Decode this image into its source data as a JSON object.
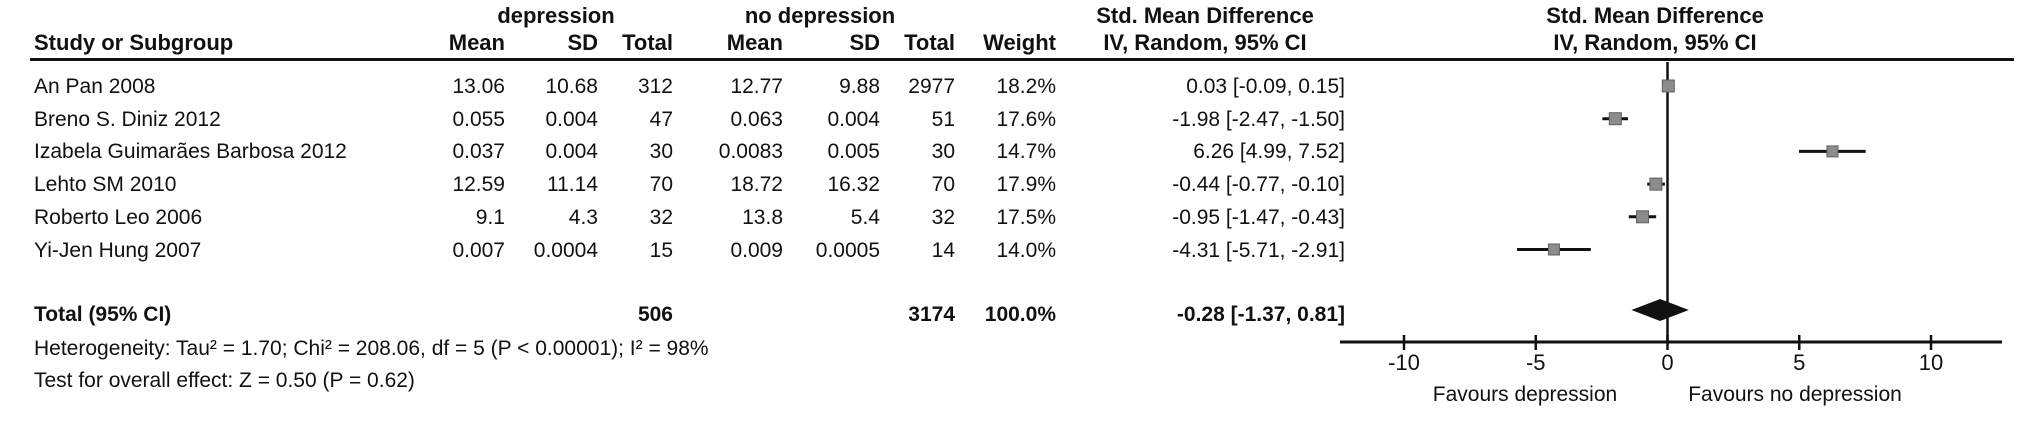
{
  "header": {
    "group1": "depression",
    "group2": "no depression",
    "effect": "Std. Mean Difference",
    "method": "IV, Random, 95% CI",
    "col_study": "Study or Subgroup",
    "col_mean": "Mean",
    "col_sd": "SD",
    "col_total": "Total",
    "col_weight": "Weight"
  },
  "total_row": {
    "label": "Total (95% CI)",
    "total1": "506",
    "total2": "3174",
    "weight": "100.0%",
    "ci": "-0.28 [-1.37, 0.81]"
  },
  "footer": {
    "heterogeneity": "Heterogeneity: Tau² = 1.70; Chi² = 208.06, df = 5 (P < 0.00001); I² = 98%",
    "overall_effect": "Test for overall effect: Z = 0.50 (P = 0.62)"
  },
  "chart_data": {
    "type": "scatter",
    "subtype": "forest-plot",
    "title": "Std. Mean Difference",
    "method_label": "IV, Random, 95% CI",
    "x_ticks": [
      -10,
      -5,
      0,
      5,
      10
    ],
    "xlim": [
      -12.4,
      12.7
    ],
    "favours_left": "Favours depression",
    "favours_right": "Favours no depression",
    "marker_color": "#8c8c8c",
    "marker_edge_color": "#5f5f5f",
    "line_color": "#111111",
    "studies": [
      {
        "name": "An Pan 2008",
        "mean1": "13.06",
        "sd1": "10.68",
        "total1": "312",
        "mean2": "12.77",
        "sd2": "9.88",
        "total2": "2977",
        "weight": "18.2%",
        "weight_pct": 18.2,
        "ci": "0.03 [-0.09, 0.15]",
        "smd": 0.03,
        "ci_low": -0.09,
        "ci_high": 0.15
      },
      {
        "name": "Breno S. Diniz 2012",
        "mean1": "0.055",
        "sd1": "0.004",
        "total1": "47",
        "mean2": "0.063",
        "sd2": "0.004",
        "total2": "51",
        "weight": "17.6%",
        "weight_pct": 17.6,
        "ci": "-1.98 [-2.47, -1.50]",
        "smd": -1.98,
        "ci_low": -2.47,
        "ci_high": -1.5
      },
      {
        "name": "Izabela Guimarães Barbosa 2012",
        "mean1": "0.037",
        "sd1": "0.004",
        "total1": "30",
        "mean2": "0.0083",
        "sd2": "0.005",
        "total2": "30",
        "weight": "14.7%",
        "weight_pct": 14.7,
        "ci": "6.26 [4.99, 7.52]",
        "smd": 6.26,
        "ci_low": 4.99,
        "ci_high": 7.52
      },
      {
        "name": "Lehto SM 2010",
        "mean1": "12.59",
        "sd1": "11.14",
        "total1": "70",
        "mean2": "18.72",
        "sd2": "16.32",
        "total2": "70",
        "weight": "17.9%",
        "weight_pct": 17.9,
        "ci": "-0.44 [-0.77, -0.10]",
        "smd": -0.44,
        "ci_low": -0.77,
        "ci_high": -0.1
      },
      {
        "name": "Roberto Leo 2006",
        "mean1": "9.1",
        "sd1": "4.3",
        "total1": "32",
        "mean2": "13.8",
        "sd2": "5.4",
        "total2": "32",
        "weight": "17.5%",
        "weight_pct": 17.5,
        "ci": "-0.95 [-1.47, -0.43]",
        "smd": -0.95,
        "ci_low": -1.47,
        "ci_high": -0.43
      },
      {
        "name": "Yi-Jen Hung 2007",
        "mean1": "0.007",
        "sd1": "0.0004",
        "total1": "15",
        "mean2": "0.009",
        "sd2": "0.0005",
        "total2": "14",
        "weight": "14.0%",
        "weight_pct": 14.0,
        "ci": "-4.31 [-5.71, -2.91]",
        "smd": -4.31,
        "ci_low": -5.71,
        "ci_high": -2.91
      }
    ],
    "total": {
      "smd": -0.28,
      "ci_low": -1.37,
      "ci_high": 0.81
    }
  }
}
